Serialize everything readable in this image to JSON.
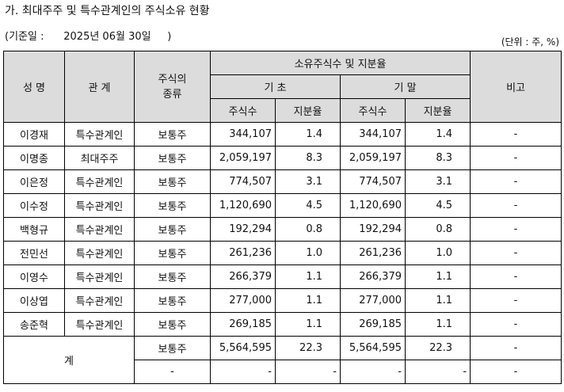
{
  "title": "가. 최대주주 및 특수관계인의 주식소유 현황",
  "base_date": "(기준일 :      2025년 06월 30일     )",
  "unit": "(단위 : 주, %)",
  "headers": {
    "name": "성 명",
    "relation": "관 계",
    "stock_type_line1": "주식의",
    "stock_type_line2": "종류",
    "ownership": "소유주식수 및 지분율",
    "begin": "기 초",
    "end": "기 말",
    "shares": "주식수",
    "ratio": "지분율",
    "remark": "비고"
  },
  "rows": [
    {
      "name": "이경재",
      "relation": "특수관계인",
      "stock_type": "보통주",
      "begin_shares": "344,107",
      "begin_ratio": "1.4",
      "end_shares": "344,107",
      "end_ratio": "1.4",
      "remark": "-"
    },
    {
      "name": "이명종",
      "relation": "최대주주",
      "stock_type": "보통주",
      "begin_shares": "2,059,197",
      "begin_ratio": "8.3",
      "end_shares": "2,059,197",
      "end_ratio": "8.3",
      "remark": "-"
    },
    {
      "name": "이은정",
      "relation": "특수관계인",
      "stock_type": "보통주",
      "begin_shares": "774,507",
      "begin_ratio": "3.1",
      "end_shares": "774,507",
      "end_ratio": "3.1",
      "remark": "-"
    },
    {
      "name": "이수정",
      "relation": "특수관계인",
      "stock_type": "보통주",
      "begin_shares": "1,120,690",
      "begin_ratio": "4.5",
      "end_shares": "1,120,690",
      "end_ratio": "4.5",
      "remark": "-"
    },
    {
      "name": "백형규",
      "relation": "특수관계인",
      "stock_type": "보통주",
      "begin_shares": "192,294",
      "begin_ratio": "0.8",
      "end_shares": "192,294",
      "end_ratio": "0.8",
      "remark": "-"
    },
    {
      "name": "전민선",
      "relation": "특수관계인",
      "stock_type": "보통주",
      "begin_shares": "261,236",
      "begin_ratio": "1.0",
      "end_shares": "261,236",
      "end_ratio": "1.0",
      "remark": "-"
    },
    {
      "name": "이영수",
      "relation": "특수관계인",
      "stock_type": "보통주",
      "begin_shares": "266,379",
      "begin_ratio": "1.1",
      "end_shares": "266,379",
      "end_ratio": "1.1",
      "remark": "-"
    },
    {
      "name": "이상엽",
      "relation": "특수관계인",
      "stock_type": "보통주",
      "begin_shares": "277,000",
      "begin_ratio": "1.1",
      "end_shares": "277,000",
      "end_ratio": "1.1",
      "remark": "-"
    },
    {
      "name": "송준혁",
      "relation": "특수관계인",
      "stock_type": "보통주",
      "begin_shares": "269,185",
      "begin_ratio": "1.1",
      "end_shares": "269,185",
      "end_ratio": "1.1",
      "remark": "-"
    }
  ],
  "total": {
    "label": "계",
    "row1": {
      "stock_type": "보통주",
      "begin_shares": "5,564,595",
      "begin_ratio": "22.3",
      "end_shares": "5,564,595",
      "end_ratio": "22.3",
      "remark": "-"
    },
    "row2": {
      "stock_type": "-",
      "begin_shares": "-",
      "begin_ratio": "-",
      "end_shares": "-",
      "end_ratio": "-",
      "remark": "-"
    }
  }
}
